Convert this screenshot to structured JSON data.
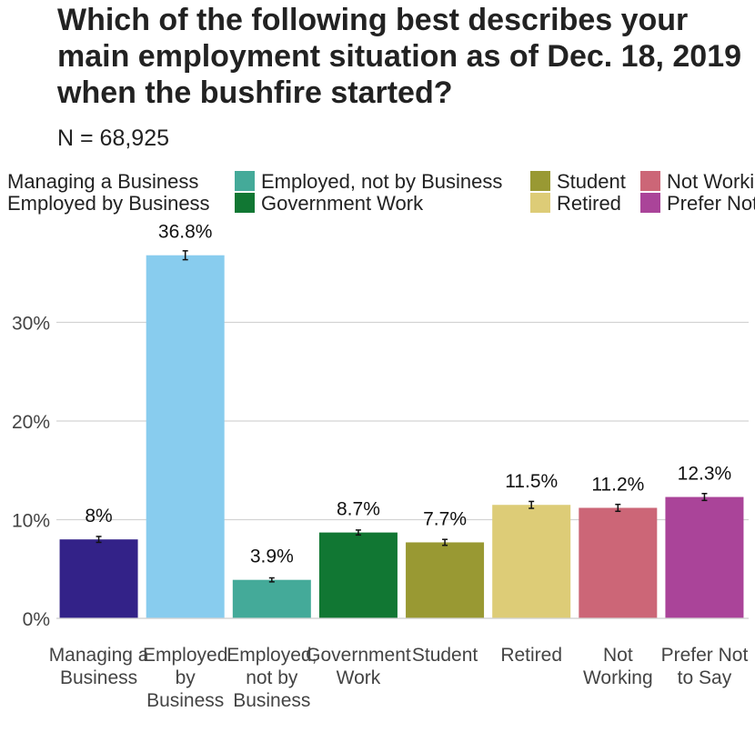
{
  "chart_data": {
    "type": "bar",
    "title": "Which of the following best describes your main employment situation as of Dec. 18, 2019 when the bushfire started?",
    "subtitle": "N = 68,925",
    "xlabel": "",
    "ylabel": "",
    "ylim": [
      0,
      40
    ],
    "yticks": [
      0,
      10,
      20,
      30
    ],
    "ytick_labels": [
      "0%",
      "10%",
      "20%",
      "30%"
    ],
    "grid": true,
    "legend_position": "top",
    "categories": [
      {
        "name": "Managing a Business",
        "tick": [
          "Managing a",
          "Business"
        ],
        "label": "8%",
        "value": 8.0,
        "err": 0.3,
        "color": "#332288"
      },
      {
        "name": "Employed by Business",
        "tick": [
          "Employed",
          "by",
          "Business"
        ],
        "label": "36.8%",
        "value": 36.8,
        "err": 0.45,
        "color": "#88CCEE"
      },
      {
        "name": "Employed, not by Business",
        "tick": [
          "Employed,",
          "not by",
          "Business"
        ],
        "label": "3.9%",
        "value": 3.9,
        "err": 0.2,
        "color": "#44AA99"
      },
      {
        "name": "Government Work",
        "tick": [
          "Government",
          "Work"
        ],
        "label": "8.7%",
        "value": 8.7,
        "err": 0.25,
        "color": "#117733"
      },
      {
        "name": "Student",
        "tick": [
          "Student"
        ],
        "label": "7.7%",
        "value": 7.7,
        "err": 0.3,
        "color": "#999933"
      },
      {
        "name": "Retired",
        "tick": [
          "Retired"
        ],
        "label": "11.5%",
        "value": 11.5,
        "err": 0.35,
        "color": "#DDCC77"
      },
      {
        "name": "Not Working",
        "tick": [
          "Not",
          "Working"
        ],
        "label": "11.2%",
        "value": 11.2,
        "err": 0.35,
        "color": "#CC6677"
      },
      {
        "name": "Prefer Not to Say",
        "tick": [
          "Prefer Not",
          "to Say"
        ],
        "label": "12.3%",
        "value": 12.3,
        "err": 0.35,
        "color": "#AA4499"
      }
    ]
  }
}
